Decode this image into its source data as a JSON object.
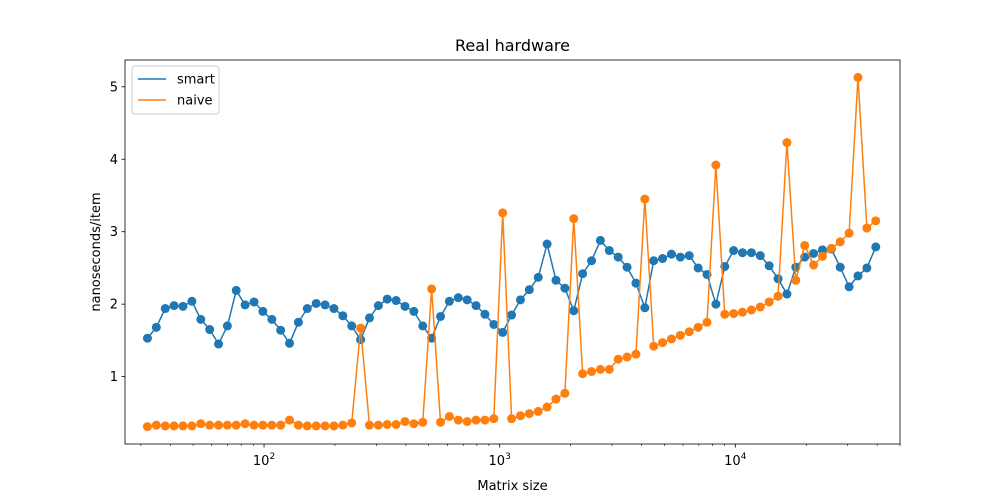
{
  "chart_data": {
    "type": "line",
    "title": "Real hardware",
    "xlabel": "Matrix size",
    "ylabel": "nanoseconds/item",
    "xscale": "log",
    "xlim": [
      25.7,
      50000
    ],
    "ylim": [
      0.07,
      5.37
    ],
    "yticks": [
      1,
      2,
      3,
      4,
      5
    ],
    "xticks": [
      {
        "value": 100,
        "base": "10",
        "exp": "2"
      },
      {
        "value": 1000,
        "base": "10",
        "exp": "3"
      },
      {
        "value": 10000,
        "base": "10",
        "exp": "4"
      }
    ],
    "legend": "upper-left",
    "grid": false,
    "x": [
      32,
      34.9,
      38.1,
      41.5,
      45.3,
      49.4,
      53.9,
      58.8,
      64.1,
      69.9,
      76.2,
      83.1,
      90.7,
      98.9,
      107.9,
      117.6,
      128.3,
      139.9,
      152.6,
      166.5,
      181.6,
      198.0,
      216.0,
      235.6,
      256.9,
      280.2,
      305.6,
      333.3,
      363.5,
      396.5,
      432.4,
      471.6,
      514.4,
      561.0,
      611.9,
      667.4,
      727.9,
      793.9,
      865.9,
      944.4,
      1030.0,
      1123.4,
      1225.3,
      1336.4,
      1457.6,
      1589.8,
      1733.9,
      1891.2,
      2062.7,
      2249.8,
      2453.8,
      2676.3,
      2919.0,
      3183.7,
      3472.5,
      3787.4,
      4130.8,
      4505.4,
      4914.0,
      5359.6,
      5845.6,
      6375.7,
      6953.9,
      7584.5,
      8270.2,
      9020.2,
      9838.2,
      10730.4,
      11703.4,
      12764.7,
      13922.3,
      15184.8,
      16561.8,
      18063.7,
      19701.8,
      21488.5,
      23437.1,
      25562.4,
      27880.5,
      30408.8,
      33166.3,
      36173.9,
      39454.3
    ],
    "series": [
      {
        "name": "smart",
        "color": "#1f77b4",
        "values": [
          1.53,
          1.68,
          1.94,
          1.98,
          1.97,
          2.04,
          1.79,
          1.65,
          1.45,
          1.7,
          2.19,
          1.99,
          2.03,
          1.9,
          1.79,
          1.64,
          1.46,
          1.75,
          1.94,
          2.01,
          1.99,
          1.94,
          1.84,
          1.7,
          1.51,
          1.81,
          1.98,
          2.07,
          2.05,
          1.97,
          1.9,
          1.7,
          1.53,
          1.83,
          2.04,
          2.09,
          2.06,
          1.98,
          1.86,
          1.72,
          1.61,
          1.85,
          2.06,
          2.2,
          2.37,
          2.83,
          2.33,
          2.22,
          1.91,
          2.42,
          2.6,
          2.88,
          2.74,
          2.65,
          2.51,
          2.29,
          1.95,
          2.6,
          2.63,
          2.69,
          2.65,
          2.67,
          2.5,
          2.41,
          2.0,
          2.52,
          2.74,
          2.71,
          2.71,
          2.67,
          2.53,
          2.35,
          2.14,
          2.51,
          2.65,
          2.7,
          2.75,
          2.76,
          2.51,
          2.24,
          2.39,
          2.5,
          2.79
        ]
      },
      {
        "name": "naive",
        "color": "#ff7f0e",
        "values": [
          0.31,
          0.33,
          0.32,
          0.32,
          0.32,
          0.32,
          0.35,
          0.33,
          0.33,
          0.33,
          0.33,
          0.35,
          0.33,
          0.33,
          0.33,
          0.33,
          0.4,
          0.33,
          0.32,
          0.32,
          0.32,
          0.32,
          0.33,
          0.36,
          1.67,
          0.33,
          0.33,
          0.34,
          0.34,
          0.38,
          0.35,
          0.37,
          2.21,
          0.37,
          0.45,
          0.4,
          0.38,
          0.4,
          0.4,
          0.42,
          3.26,
          0.42,
          0.46,
          0.49,
          0.52,
          0.58,
          0.69,
          0.77,
          3.18,
          1.04,
          1.07,
          1.1,
          1.1,
          1.24,
          1.27,
          1.31,
          3.45,
          1.42,
          1.47,
          1.52,
          1.57,
          1.62,
          1.68,
          1.75,
          3.92,
          1.86,
          1.87,
          1.89,
          1.92,
          1.96,
          2.03,
          2.11,
          4.23,
          2.33,
          2.81,
          2.54,
          2.66,
          2.77,
          2.86,
          2.98,
          5.13,
          3.05,
          3.15
        ]
      }
    ]
  }
}
